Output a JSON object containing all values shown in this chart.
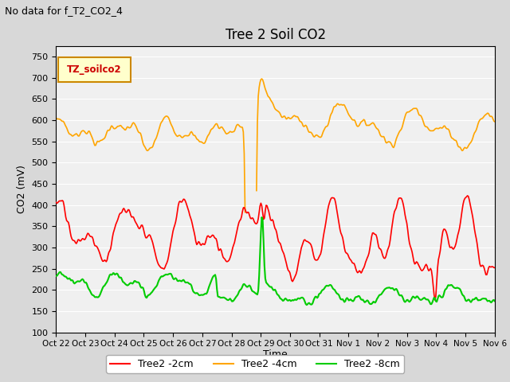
{
  "title": "Tree 2 Soil CO2",
  "suptitle": "No data for f_T2_CO2_4",
  "ylabel": "CO2 (mV)",
  "xlabel": "Time",
  "ylim": [
    100,
    775
  ],
  "yticks": [
    100,
    150,
    200,
    250,
    300,
    350,
    400,
    450,
    500,
    550,
    600,
    650,
    700,
    750
  ],
  "xtick_labels": [
    "Oct 22",
    "Oct 23",
    "Oct 24",
    "Oct 25",
    "Oct 26",
    "Oct 27",
    "Oct 28",
    "Oct 29",
    "Oct 30",
    "Oct 31",
    "Nov 1",
    "Nov 2",
    "Nov 3",
    "Nov 4",
    "Nov 5",
    "Nov 6"
  ],
  "legend_label_box": "TZ_soilco2",
  "legend_labels": [
    "Tree2 -2cm",
    "Tree2 -4cm",
    "Tree2 -8cm"
  ],
  "legend_colors": [
    "#ff0000",
    "#ffa500",
    "#00cc00"
  ],
  "bg_color": "#d8d8d8",
  "plot_bg_color": "#f0f0f0",
  "grid_color": "#ffffff",
  "series_colors": [
    "#ff0000",
    "#ffa500",
    "#00cc00"
  ]
}
